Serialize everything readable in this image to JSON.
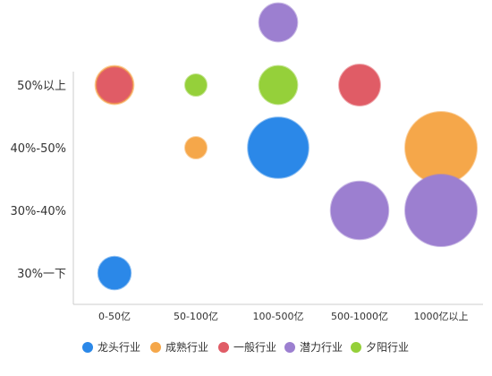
{
  "chart_data": {
    "type": "scatter",
    "subtype": "bubble",
    "title": "",
    "xlabel": "",
    "ylabel": "",
    "x_categories": [
      "0-50亿",
      "50-100亿",
      "100-500亿",
      "500-1000亿",
      "1000亿以上"
    ],
    "y_categories": [
      "30%一下",
      "30%-40%",
      "40%-50%",
      "50%以上"
    ],
    "legend_position": "bottom",
    "grid": false,
    "series": [
      {
        "name": "龙头行业",
        "color": "#2b88e8",
        "points": [
          {
            "x": "0-50亿",
            "y": "30%一下",
            "size": 3
          },
          {
            "x": "100-500亿",
            "y": "40%-50%",
            "size": 8
          }
        ]
      },
      {
        "name": "成熟行业",
        "color": "#f5a74a",
        "points": [
          {
            "x": "0-50亿",
            "y": "50%以上",
            "size": 4
          },
          {
            "x": "50-100亿",
            "y": "40%-50%",
            "size": 1
          },
          {
            "x": "1000亿以上",
            "y": "40%-50%",
            "size": 10
          }
        ]
      },
      {
        "name": "一般行业",
        "color": "#e05c66",
        "points": [
          {
            "x": "0-50亿",
            "y": "50%以上",
            "size": 3.5
          },
          {
            "x": "500-1000亿",
            "y": "50%以上",
            "size": 4.5
          }
        ]
      },
      {
        "name": "潜力行业",
        "color": "#9c7fd0",
        "points": [
          {
            "x": "100-500亿",
            "y": "50%以上",
            "size": 4,
            "beyond_top": true
          },
          {
            "x": "500-1000亿",
            "y": "30%-40%",
            "size": 7.5
          },
          {
            "x": "1000亿以上",
            "y": "30%-40%",
            "size": 10
          }
        ]
      },
      {
        "name": "夕阳行业",
        "color": "#95d03a",
        "points": [
          {
            "x": "50-100亿",
            "y": "50%以上",
            "size": 1
          },
          {
            "x": "100-500亿",
            "y": "50%以上",
            "size": 4
          }
        ]
      }
    ]
  }
}
